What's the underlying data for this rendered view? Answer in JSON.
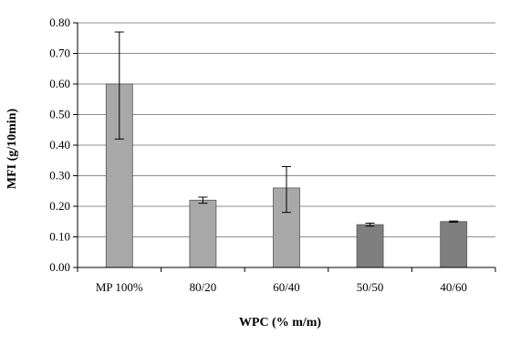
{
  "chart_data": {
    "type": "bar",
    "title": "",
    "xlabel": "WPC (% m/m)",
    "ylabel": "MFI (g/10min)",
    "ylim": [
      0,
      0.8
    ],
    "yticks": [
      "0.00",
      "0.10",
      "0.20",
      "0.30",
      "0.40",
      "0.50",
      "0.60",
      "0.70",
      "0.80"
    ],
    "categories": [
      "MP 100%",
      "80/20",
      "60/40",
      "50/50",
      "40/60"
    ],
    "values": [
      0.6,
      0.22,
      0.26,
      0.14,
      0.15
    ],
    "error_low": [
      0.42,
      0.21,
      0.18,
      0.135,
      0.148
    ],
    "error_high": [
      0.77,
      0.23,
      0.33,
      0.145,
      0.152
    ],
    "bar_colors": [
      "#a8a8a8",
      "#a8a8a8",
      "#a8a8a8",
      "#7f7f7f",
      "#7f7f7f"
    ],
    "grid": true,
    "legend": "none"
  }
}
